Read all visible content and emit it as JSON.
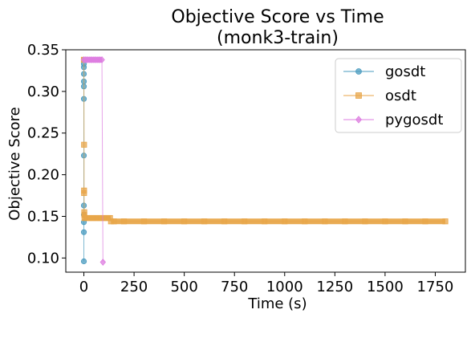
{
  "chart_data": {
    "type": "scatter",
    "title_line1": "Objective Score vs Time",
    "title_line2": "(monk3-train)",
    "xlabel": "Time (s)",
    "ylabel": "Objective Score",
    "xlim": [
      -90,
      1900
    ],
    "ylim": [
      0.083,
      0.35
    ],
    "xticks": [
      0,
      250,
      500,
      750,
      1000,
      1250,
      1500,
      1750
    ],
    "yticks": [
      0.1,
      0.15,
      0.2,
      0.25,
      0.3,
      0.35
    ],
    "xtick_labels": [
      "0",
      "250",
      "500",
      "750",
      "1000",
      "1250",
      "1500",
      "1750"
    ],
    "ytick_labels": [
      "0.10",
      "0.15",
      "0.20",
      "0.25",
      "0.30",
      "0.35"
    ],
    "grid": false,
    "legend_position": "top-right",
    "series": [
      {
        "name": "gosdt",
        "color": "#4a9bbf",
        "marker": "circle",
        "points": [
          [
            0,
            0.096
          ],
          [
            0,
            0.131
          ],
          [
            0,
            0.143
          ],
          [
            0,
            0.152
          ],
          [
            0,
            0.163
          ],
          [
            0,
            0.223
          ],
          [
            0,
            0.291
          ],
          [
            0,
            0.306
          ],
          [
            0,
            0.312
          ],
          [
            0,
            0.321
          ],
          [
            0,
            0.329
          ],
          [
            0,
            0.333
          ],
          [
            0,
            0.338
          ]
        ]
      },
      {
        "name": "osdt",
        "color": "#e8a64a",
        "marker": "square",
        "points": [
          [
            0,
            0.338
          ],
          [
            1,
            0.236
          ],
          [
            1,
            0.181
          ],
          [
            1,
            0.178
          ],
          [
            2,
            0.155
          ],
          [
            2,
            0.152
          ],
          [
            3,
            0.148
          ],
          [
            10,
            0.148
          ],
          [
            20,
            0.148
          ],
          [
            30,
            0.148
          ],
          [
            40,
            0.148
          ],
          [
            50,
            0.148
          ],
          [
            60,
            0.148
          ],
          [
            70,
            0.148
          ],
          [
            80,
            0.148
          ],
          [
            90,
            0.148
          ],
          [
            100,
            0.148
          ],
          [
            110,
            0.148
          ],
          [
            120,
            0.148
          ],
          [
            130,
            0.148
          ],
          [
            135,
            0.144
          ],
          [
            150,
            0.144
          ],
          [
            200,
            0.144
          ],
          [
            300,
            0.144
          ],
          [
            400,
            0.144
          ],
          [
            500,
            0.144
          ],
          [
            600,
            0.144
          ],
          [
            700,
            0.144
          ],
          [
            800,
            0.144
          ],
          [
            900,
            0.144
          ],
          [
            1000,
            0.144
          ],
          [
            1100,
            0.144
          ],
          [
            1200,
            0.144
          ],
          [
            1300,
            0.144
          ],
          [
            1400,
            0.144
          ],
          [
            1500,
            0.144
          ],
          [
            1600,
            0.144
          ],
          [
            1700,
            0.144
          ],
          [
            1800,
            0.144
          ]
        ]
      },
      {
        "name": "pygosdt",
        "color": "#dd7de0",
        "marker": "diamond",
        "points": [
          [
            0,
            0.338
          ],
          [
            10,
            0.338
          ],
          [
            20,
            0.338
          ],
          [
            30,
            0.338
          ],
          [
            40,
            0.338
          ],
          [
            50,
            0.338
          ],
          [
            60,
            0.338
          ],
          [
            70,
            0.338
          ],
          [
            80,
            0.338
          ],
          [
            90,
            0.338
          ],
          [
            95,
            0.095
          ]
        ]
      }
    ]
  }
}
